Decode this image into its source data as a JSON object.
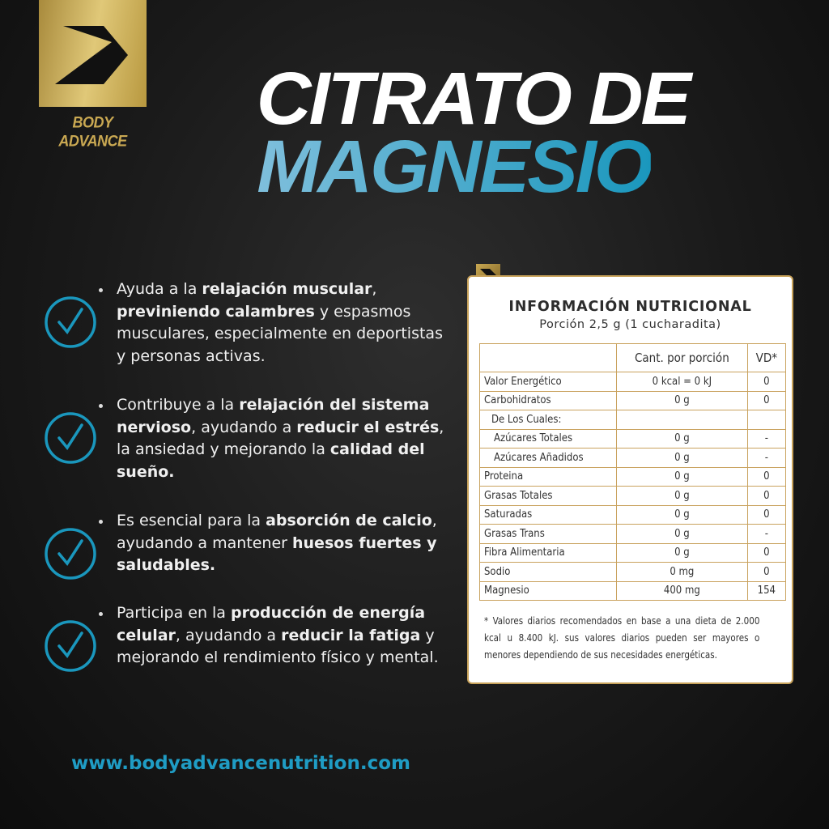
{
  "brand": {
    "name": "BODY ADVANCE",
    "logo_icon": "chevron-arrow-logo",
    "accent": "#c9a852"
  },
  "title": {
    "line1": "CITRATO DE",
    "line2": "MAGNESIO",
    "line2_color": "#1a97bd"
  },
  "benefits": [
    {
      "icon": "check-circle-icon",
      "segments": [
        {
          "t": "Ayuda a la ",
          "b": false
        },
        {
          "t": "relajación muscular",
          "b": true
        },
        {
          "t": ", ",
          "b": false
        },
        {
          "t": "previniendo calambres",
          "b": true
        },
        {
          "t": " y espasmos musculares, especialmente en deportistas y personas activas.",
          "b": false
        }
      ]
    },
    {
      "icon": "check-circle-icon",
      "segments": [
        {
          "t": "Contribuye a la ",
          "b": false
        },
        {
          "t": "relajación del sistema nervioso",
          "b": true
        },
        {
          "t": ", ayudando a ",
          "b": false
        },
        {
          "t": "reducir el estrés",
          "b": true
        },
        {
          "t": ", la ansiedad y mejorando la ",
          "b": false
        },
        {
          "t": "calidad del sueño.",
          "b": true
        }
      ]
    },
    {
      "icon": "check-circle-icon",
      "segments": [
        {
          "t": "Es esencial para la ",
          "b": false
        },
        {
          "t": "absorción de calcio",
          "b": true
        },
        {
          "t": ", ayudando a mantener ",
          "b": false
        },
        {
          "t": "huesos fuertes y saludables.",
          "b": true
        }
      ]
    },
    {
      "icon": "check-circle-icon",
      "segments": [
        {
          "t": "Participa en la ",
          "b": false
        },
        {
          "t": "producción de energía celular",
          "b": true
        },
        {
          "t": ", ayudando a ",
          "b": false
        },
        {
          "t": "reducir la fatiga",
          "b": true
        },
        {
          "t": " y mejorando el rendimiento físico y mental.",
          "b": false
        }
      ]
    }
  ],
  "nutrition": {
    "title": "INFORMACIÓN NUTRICIONAL",
    "serving": "Porción 2,5 g (1 cucharadita)",
    "headers": [
      "",
      "Cant. por porción",
      "VD*"
    ],
    "rows": [
      [
        "Valor Energético",
        "0 kcal = 0 kJ",
        "0"
      ],
      [
        "Carbohidratos",
        "0 g",
        "0"
      ],
      [
        "De Los Cuales:",
        "",
        ""
      ],
      [
        "Azúcares Totales",
        "0 g",
        "-"
      ],
      [
        "Azúcares Añadidos",
        "0 g",
        "-"
      ],
      [
        "Proteina",
        "0 g",
        "0"
      ],
      [
        "Grasas Totales",
        "0 g",
        "0"
      ],
      [
        "Saturadas",
        "0 g",
        "0"
      ],
      [
        "Grasas Trans",
        "0 g",
        "-"
      ],
      [
        "Fibra Alimentaria",
        "0 g",
        "0"
      ],
      [
        "Sodio",
        "0 mg",
        "0"
      ],
      [
        "Magnesio",
        "400 mg",
        "154"
      ]
    ],
    "footnote": "* Valores diarios recomendados en base a una dieta de 2.000 kcal u 8.400 kJ. sus valores diarios pueden ser mayores o menores dependiendo de sus necesidades energéticas."
  },
  "website": "www.bodyadvancenutrition.com"
}
